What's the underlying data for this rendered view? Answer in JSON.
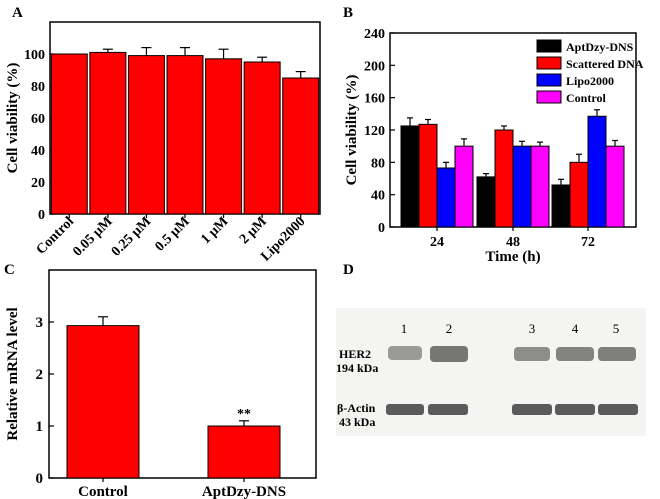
{
  "colors": {
    "red": "#ff0000",
    "black": "#000000",
    "blue": "#0000ff",
    "magenta": "#ff00ff",
    "blot_bg": "#f4f4f2",
    "band": "#5a5a5a"
  },
  "chart_data": [
    {
      "panel": "A",
      "type": "bar",
      "title": "",
      "xlabel": "",
      "ylabel": "Cell viability (%)",
      "ylim": [
        0,
        120
      ],
      "yticks": [
        0,
        20,
        40,
        60,
        80,
        100
      ],
      "categories": [
        "Control",
        "0.05 μM",
        "0.25 μM",
        "0.5 μM",
        "1 μM",
        "2 μM",
        "Lipo2000"
      ],
      "values": [
        100,
        101,
        99,
        99,
        97,
        95,
        85
      ],
      "errors": [
        0,
        2,
        5,
        5,
        6,
        3,
        4
      ],
      "color": "#ff0000"
    },
    {
      "panel": "B",
      "type": "bar",
      "title": "",
      "xlabel": "Time (h)",
      "ylabel": "Cell viability (%)",
      "ylim": [
        0,
        240
      ],
      "yticks": [
        0,
        40,
        80,
        120,
        160,
        200,
        240
      ],
      "categories": [
        "24",
        "48",
        "72"
      ],
      "legend_position": "top-right",
      "series": [
        {
          "name": "AptDzy-DNS",
          "color": "#000000",
          "values": [
            125,
            62,
            52
          ],
          "errors": [
            10,
            4,
            7
          ]
        },
        {
          "name": "Scattered DNA",
          "color": "#ff0000",
          "values": [
            127,
            120,
            80
          ],
          "errors": [
            6,
            5,
            10
          ]
        },
        {
          "name": "Lipo2000",
          "color": "#0000ff",
          "values": [
            73,
            100,
            137
          ],
          "errors": [
            7,
            6,
            8
          ]
        },
        {
          "name": "Control",
          "color": "#ff00ff",
          "values": [
            100,
            100,
            100
          ],
          "errors": [
            9,
            5,
            7
          ]
        }
      ]
    },
    {
      "panel": "C",
      "type": "bar",
      "title": "",
      "xlabel": "",
      "ylabel": "Relative mRNA level",
      "ylim": [
        0,
        4
      ],
      "yticks": [
        0,
        1,
        2,
        3
      ],
      "categories": [
        "Control",
        "AptDzy-DNS"
      ],
      "values": [
        2.93,
        1.0
      ],
      "errors": [
        0.17,
        0.1
      ],
      "annotations": [
        "",
        "**"
      ],
      "color": "#ff0000"
    }
  ],
  "blot": {
    "panel": "D",
    "lanes": [
      "1",
      "2",
      "3",
      "4",
      "5"
    ],
    "rows": [
      {
        "label": "HER2",
        "sublabel": "194 kDa"
      },
      {
        "label": "β-Actin",
        "sublabel": "43 kDa"
      }
    ]
  }
}
